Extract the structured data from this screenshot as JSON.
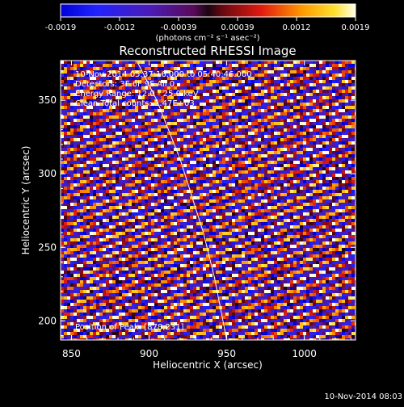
{
  "chart_data": {
    "type": "heatmap",
    "title": "Reconstructed RHESSI Image",
    "xlabel": "Heliocentric X (arcsec)",
    "ylabel": "Heliocentric Y (arcsec)",
    "xlim": [
      843,
      1033
    ],
    "ylim": [
      187,
      377
    ],
    "xticks": [
      850,
      900,
      950,
      1000
    ],
    "yticks": [
      200,
      250,
      300,
      350
    ],
    "colorbar": {
      "ticks": [
        "-0.0019",
        "-0.0012",
        "-0.00039",
        "0.00039",
        "0.0012",
        "0.0019"
      ],
      "min": -0.0019,
      "max": 0.0019,
      "unit_label": "(photons cm⁻² s⁻¹ asec⁻²)"
    },
    "annotations": [
      "10-Nov-2014 05:37:16.000 to 05:40:46.000",
      "Detectors: 3F 6F 9F All 0",
      "Energy Range: 12.0 - 25.0 keV",
      "Clean    Total counts: 1.47E+03"
    ],
    "peak_label": "Position of Peak: [878,231]",
    "limb": [
      [
        892,
        377
      ],
      [
        905,
        350
      ],
      [
        920,
        310
      ],
      [
        935,
        260
      ],
      [
        942,
        230
      ],
      [
        950,
        187
      ]
    ],
    "pattern": {
      "stripe_slope": 0.35,
      "stripe_spacing": 11.3,
      "pixel_size": 4
    }
  },
  "footer": {
    "timestamp": "10-Nov-2014 08:03"
  },
  "colors": {
    "background": "#000000",
    "text": "#ffffff",
    "limb": "#ffffff"
  }
}
